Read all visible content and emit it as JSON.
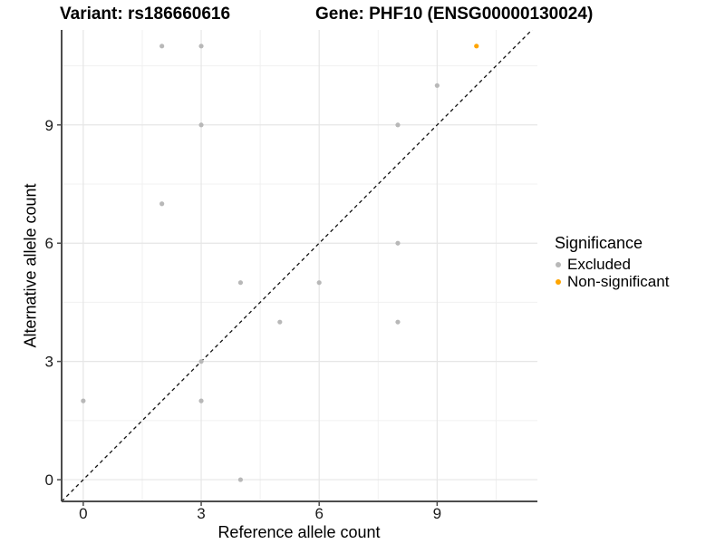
{
  "header": {
    "left_title": "Variant: rs186660616",
    "right_title": "Gene: PHF10 (ENSG00000130024)"
  },
  "chart_data": {
    "type": "scatter",
    "title_left": "Variant: rs186660616",
    "title_right": "Gene: PHF10 (ENSG00000130024)",
    "xlabel": "Reference allele count",
    "ylabel": "Alternative allele count",
    "xlim": [
      -0.55,
      11.55
    ],
    "ylim": [
      -0.55,
      11.41
    ],
    "x_ticks": [
      0,
      3,
      6,
      9
    ],
    "y_ticks": [
      0,
      3,
      6,
      9
    ],
    "x_minor_ticks": [
      1.5,
      4.5,
      7.5,
      10.5
    ],
    "y_minor_ticks": [
      1.5,
      4.5,
      7.5,
      10.5
    ],
    "grid": "on",
    "legend_position": "right",
    "identity_line": {
      "type": "dashed",
      "color": "#111111",
      "from": [
        -0.55,
        -0.55
      ],
      "to": [
        11.55,
        11.55
      ]
    },
    "series": [
      {
        "name": "Excluded",
        "color": "#B8B8B8",
        "points": [
          [
            0,
            2
          ],
          [
            2,
            7
          ],
          [
            2,
            11
          ],
          [
            3,
            2
          ],
          [
            3,
            3
          ],
          [
            3,
            9
          ],
          [
            3,
            11
          ],
          [
            4,
            0
          ],
          [
            4,
            5
          ],
          [
            5,
            4
          ],
          [
            6,
            5
          ],
          [
            8,
            4
          ],
          [
            8,
            6
          ],
          [
            8,
            9
          ],
          [
            9,
            10
          ]
        ]
      },
      {
        "name": "Non-significant",
        "color": "#FFA500",
        "points": [
          [
            10,
            11
          ]
        ]
      }
    ]
  },
  "legend": {
    "title": "Significance",
    "items": [
      {
        "label": "Excluded",
        "color": "#B8B8B8"
      },
      {
        "label": "Non-significant",
        "color": "#FFA500"
      }
    ]
  },
  "style": {
    "axis_line_color": "#4D4D4D",
    "tick_color": "#4D4D4D",
    "tick_label_color": "#1A1A1A",
    "major_grid_color": "#E6E6E6",
    "minor_grid_color": "#F0F0F0",
    "background": "#FFFFFF"
  }
}
